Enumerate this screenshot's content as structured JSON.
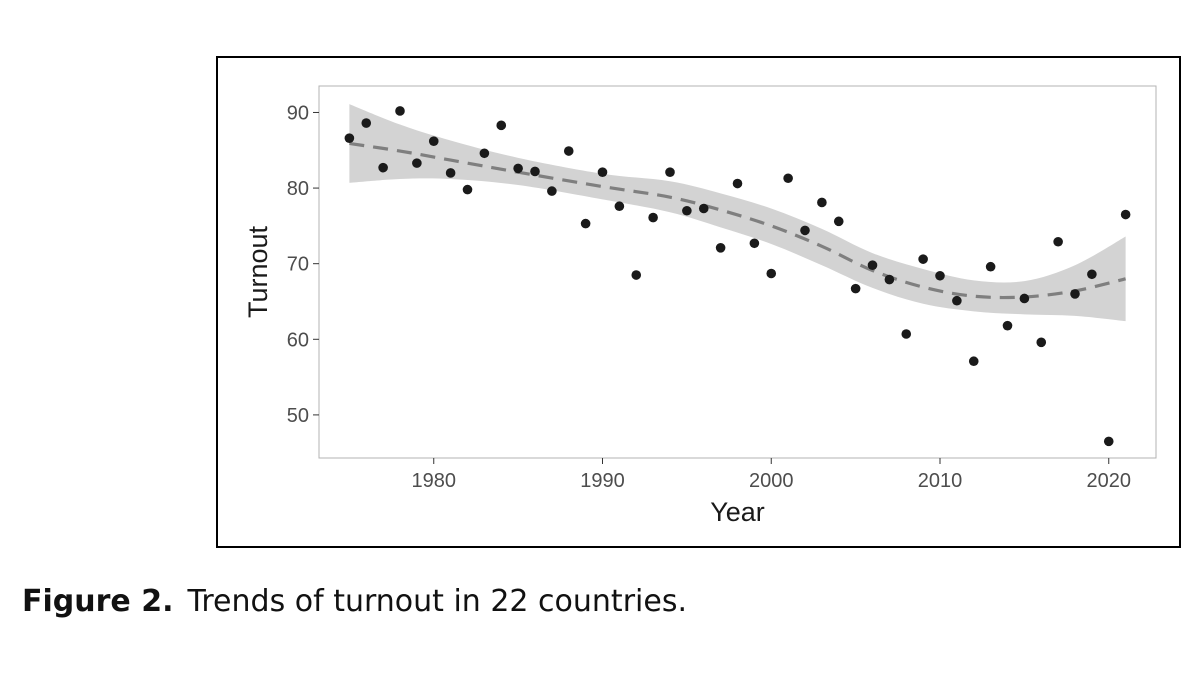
{
  "caption": {
    "label": "Figure 2.",
    "text": "Trends of turnout in 22 countries."
  },
  "colors": {
    "points": "#1a1a1a",
    "trend_line": "#7f7f7f",
    "band": "#d3d3d3",
    "panel_border": "#b3b3b3",
    "tick_text": "#4d4d4d"
  },
  "chart_data": {
    "type": "scatter",
    "title": "",
    "xlabel": "Year",
    "ylabel": "Turnout",
    "xlim": [
      1973.2,
      2022.8
    ],
    "ylim": [
      44.3,
      93.5
    ],
    "x_ticks": [
      1980,
      1990,
      2000,
      2010,
      2020
    ],
    "y_ticks": [
      50,
      60,
      70,
      80,
      90
    ],
    "grid": false,
    "points": [
      {
        "x": 1975,
        "y": 86.6
      },
      {
        "x": 1976,
        "y": 88.6
      },
      {
        "x": 1977,
        "y": 82.7
      },
      {
        "x": 1978,
        "y": 90.2
      },
      {
        "x": 1979,
        "y": 83.3
      },
      {
        "x": 1980,
        "y": 86.2
      },
      {
        "x": 1981,
        "y": 82.0
      },
      {
        "x": 1982,
        "y": 79.8
      },
      {
        "x": 1983,
        "y": 84.6
      },
      {
        "x": 1984,
        "y": 88.3
      },
      {
        "x": 1985,
        "y": 82.6
      },
      {
        "x": 1986,
        "y": 82.2
      },
      {
        "x": 1987,
        "y": 79.6
      },
      {
        "x": 1988,
        "y": 84.9
      },
      {
        "x": 1989,
        "y": 75.3
      },
      {
        "x": 1990,
        "y": 82.1
      },
      {
        "x": 1991,
        "y": 77.6
      },
      {
        "x": 1992,
        "y": 68.5
      },
      {
        "x": 1993,
        "y": 76.1
      },
      {
        "x": 1994,
        "y": 82.1
      },
      {
        "x": 1995,
        "y": 77.0
      },
      {
        "x": 1996,
        "y": 77.3
      },
      {
        "x": 1997,
        "y": 72.1
      },
      {
        "x": 1998,
        "y": 80.6
      },
      {
        "x": 1999,
        "y": 72.7
      },
      {
        "x": 2000,
        "y": 68.7
      },
      {
        "x": 2001,
        "y": 81.3
      },
      {
        "x": 2002,
        "y": 74.4
      },
      {
        "x": 2003,
        "y": 78.1
      },
      {
        "x": 2004,
        "y": 75.6
      },
      {
        "x": 2005,
        "y": 66.7
      },
      {
        "x": 2006,
        "y": 69.8
      },
      {
        "x": 2007,
        "y": 67.9
      },
      {
        "x": 2008,
        "y": 60.7
      },
      {
        "x": 2009,
        "y": 70.6
      },
      {
        "x": 2010,
        "y": 68.4
      },
      {
        "x": 2011,
        "y": 65.1
      },
      {
        "x": 2012,
        "y": 57.1
      },
      {
        "x": 2013,
        "y": 69.6
      },
      {
        "x": 2014,
        "y": 61.8
      },
      {
        "x": 2015,
        "y": 65.4
      },
      {
        "x": 2016,
        "y": 59.6
      },
      {
        "x": 2017,
        "y": 72.9
      },
      {
        "x": 2018,
        "y": 66.0
      },
      {
        "x": 2019,
        "y": 68.6
      },
      {
        "x": 2020,
        "y": 46.5
      },
      {
        "x": 2021,
        "y": 76.5
      }
    ],
    "trend": {
      "style": "dashed",
      "method": "smooth",
      "points": [
        {
          "x": 1975,
          "y": 85.9,
          "lo": 80.7,
          "hi": 91.1
        },
        {
          "x": 1978,
          "y": 84.9,
          "lo": 81.2,
          "hi": 88.4
        },
        {
          "x": 1981,
          "y": 83.7,
          "lo": 81.2,
          "hi": 86.3
        },
        {
          "x": 1985,
          "y": 82.1,
          "lo": 80.4,
          "hi": 84.0
        },
        {
          "x": 1990,
          "y": 80.2,
          "lo": 78.5,
          "hi": 81.9
        },
        {
          "x": 1994,
          "y": 78.8,
          "lo": 76.8,
          "hi": 80.9
        },
        {
          "x": 1997,
          "y": 77.1,
          "lo": 74.8,
          "hi": 79.3
        },
        {
          "x": 2000,
          "y": 75.0,
          "lo": 72.6,
          "hi": 77.3
        },
        {
          "x": 2003,
          "y": 72.3,
          "lo": 69.8,
          "hi": 74.6
        },
        {
          "x": 2006,
          "y": 69.1,
          "lo": 66.8,
          "hi": 71.4
        },
        {
          "x": 2009,
          "y": 66.9,
          "lo": 64.7,
          "hi": 69.3
        },
        {
          "x": 2012,
          "y": 65.7,
          "lo": 63.7,
          "hi": 67.8
        },
        {
          "x": 2015,
          "y": 65.6,
          "lo": 63.3,
          "hi": 67.7
        },
        {
          "x": 2018,
          "y": 66.4,
          "lo": 63.1,
          "hi": 69.8
        },
        {
          "x": 2021,
          "y": 68.0,
          "lo": 62.4,
          "hi": 73.6
        }
      ]
    }
  }
}
